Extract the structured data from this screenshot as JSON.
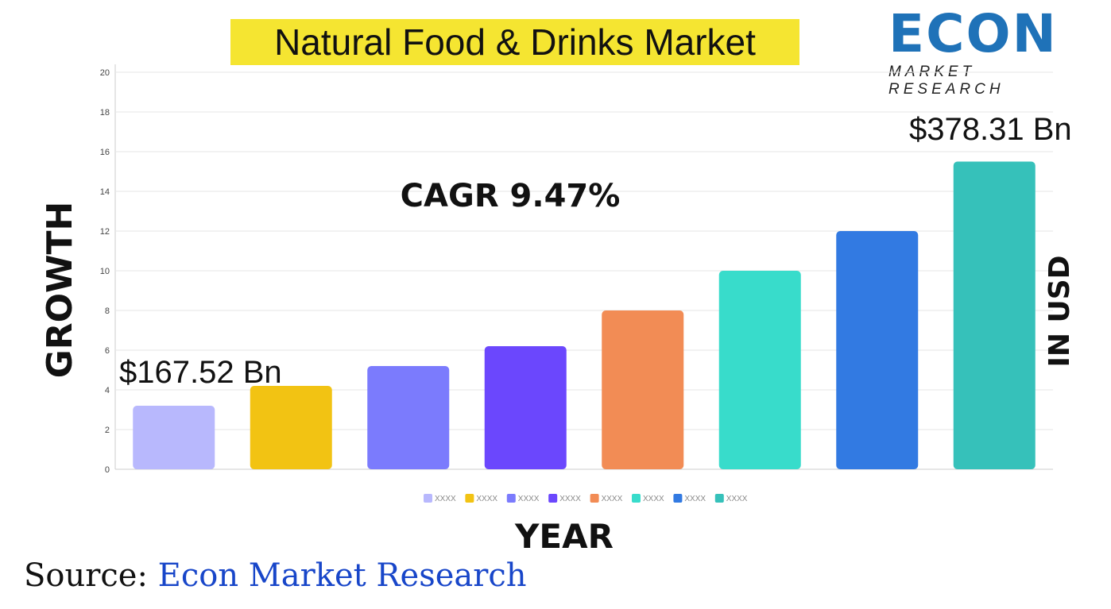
{
  "title": "Natural Food & Drinks Market",
  "logo": {
    "main": "ECON",
    "sub": "MARKET RESEARCH"
  },
  "source": {
    "label": "Source:",
    "value": "Econ Market Research"
  },
  "chart_data": {
    "type": "bar",
    "title": "Natural Food & Drinks Market",
    "xlabel": "YEAR",
    "ylabel": "GROWTH",
    "ylabel_right": "IN USD",
    "categories": [
      "XXXX",
      "XXXX",
      "XXXX",
      "XXXX",
      "XXXX",
      "XXXX",
      "XXXX",
      "XXXX"
    ],
    "values": [
      3.2,
      4.2,
      5.2,
      6.2,
      8,
      10,
      12,
      15.5
    ],
    "colors": [
      "#b8b8fd",
      "#f2c313",
      "#7b7bfd",
      "#6b47fd",
      "#f28c55",
      "#38dccb",
      "#327ae2",
      "#36c1ba"
    ],
    "ylim": [
      0,
      20
    ],
    "yticks": [
      0,
      2,
      4,
      6,
      8,
      10,
      12,
      14,
      16,
      18,
      20
    ],
    "grid": true,
    "legend": "bottom",
    "annotations": {
      "start": "$167.52 Bn",
      "end": "$378.31 Bn",
      "cagr": "CAGR 9.47%"
    }
  }
}
